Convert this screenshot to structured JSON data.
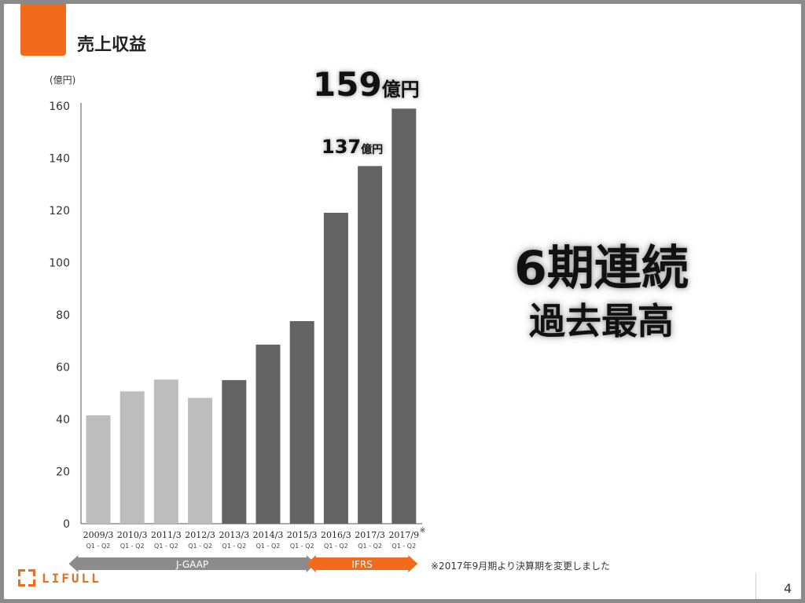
{
  "slide": {
    "title": "売上収益",
    "page_number": "4",
    "footnote": "※2017年9月期より決算期を変更しました",
    "logo_text": "LIFULL"
  },
  "callouts": {
    "latest_value": "159",
    "latest_unit": "億円",
    "prev_value": "137",
    "prev_unit": "億円"
  },
  "headline": {
    "line1": "6期連続",
    "line2": "過去最高"
  },
  "colors": {
    "accent": "#f26b1d",
    "bar_jgaap": "#bdbdbd",
    "bar_ifrs": "#636363",
    "arrow_jgaap": "#8c8c8c",
    "arrow_ifrs": "#f26b1d"
  },
  "chart_data": {
    "type": "bar",
    "y_unit_label": "(億円)",
    "ylim": [
      0,
      160
    ],
    "yticks": [
      0,
      20,
      40,
      60,
      80,
      100,
      120,
      140,
      160
    ],
    "categories": [
      "2009/3",
      "2010/3",
      "2011/3",
      "2012/3",
      "2013/3",
      "2014/3",
      "2015/3",
      "2016/3",
      "2017/3",
      "2017/9"
    ],
    "sublabels": [
      "Q1 - Q2",
      "Q1 - Q2",
      "Q1 - Q2",
      "Q1 - Q2",
      "Q1 - Q2",
      "Q1 - Q2",
      "Q1 - Q2",
      "Q1 - Q2",
      "Q1 - Q2",
      "Q1 - Q2"
    ],
    "last_category_mark": "※",
    "values": [
      41.5,
      50.7,
      55.2,
      48.2,
      55,
      68.6,
      77.6,
      119.1,
      137,
      159
    ],
    "standard": [
      "J-GAAP",
      "J-GAAP",
      "J-GAAP",
      "J-GAAP",
      "J-GAAP",
      "J-GAAP",
      "J-GAAP",
      "IFRS",
      "IFRS",
      "IFRS"
    ],
    "bar_shade": [
      "light",
      "light",
      "light",
      "light",
      "dark",
      "dark",
      "dark",
      "dark",
      "dark",
      "dark"
    ],
    "periods": [
      {
        "label": "J-GAAP",
        "from": 0,
        "to": 6
      },
      {
        "label": "IFRS",
        "from": 7,
        "to": 9
      }
    ],
    "grid": false
  }
}
